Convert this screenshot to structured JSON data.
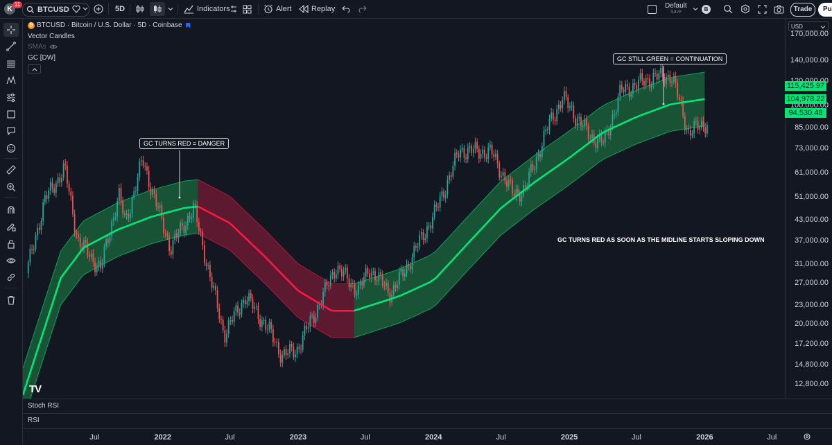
{
  "toolbar": {
    "avatar_letter": "K",
    "notification_count": "11",
    "symbol": "BTCUSD",
    "interval": "5D",
    "indicators_label": "Indicators",
    "alert_label": "Alert",
    "replay_label": "Replay",
    "layout_name": "Default",
    "layout_status": "Save",
    "trade_label": "Trade",
    "publish_label": "Pu"
  },
  "legend": {
    "title": "BTCUSD · Bitcoin / U.S. Dollar · 5D · Coinbase",
    "line2": "Vector Candles",
    "line3": "SMAs",
    "line4": "GC [DW]"
  },
  "currency": "USD",
  "annotations": {
    "danger": "GC TURNS RED = DANGER",
    "continuation": "GC STILL GREEN = CONTINUATION",
    "sloping": "GC TURNS RED AS SOON AS THE MIDLINE STARTS SLOPING DOWN"
  },
  "panes": {
    "stoch": "Stoch RSI",
    "rsi": "RSI"
  },
  "price_tags": [
    {
      "label": "115,425.97",
      "value": 115425.97
    },
    {
      "label": "104,978.22",
      "value": 104978.22
    },
    {
      "label": "94,530.48",
      "value": 94530.48
    }
  ],
  "colors": {
    "up": "#26a69a",
    "down": "#ef5350",
    "gc_green_fill": "#1b5e3a",
    "gc_red_fill": "#6b1a32",
    "gc_green_line": "#00e676",
    "gc_red_line": "#ff1744",
    "tag_green": "#00e676"
  },
  "chart_data": {
    "type": "candlestick",
    "y_scale": "log",
    "ylim": [
      11500,
      190000
    ],
    "y_ticks": [
      170000,
      140000,
      120000,
      100000,
      85000,
      73000,
      61000,
      51000,
      43000,
      37000,
      31000,
      27000,
      23000,
      20000,
      17200,
      14800,
      12800
    ],
    "y_tick_labels": [
      "170,000.00",
      "140,000.00",
      "120,000.00",
      "100,000.00",
      "85,000.00",
      "73,000.00",
      "61,000.00",
      "51,000.00",
      "43,000.00",
      "37,000.00",
      "31,000.00",
      "27,000.00",
      "23,000.00",
      "20,000.00",
      "17,200.00",
      "14,800.00",
      "12,800.00"
    ],
    "x_range": [
      "2020-12-20",
      "2026-08-05"
    ],
    "x_ticks": [
      {
        "date": "2021-07-01",
        "label": "Jul",
        "bold": false
      },
      {
        "date": "2022-01-01",
        "label": "2022",
        "bold": true
      },
      {
        "date": "2022-07-01",
        "label": "Jul",
        "bold": false
      },
      {
        "date": "2023-01-01",
        "label": "2023",
        "bold": true
      },
      {
        "date": "2023-07-01",
        "label": "Jul",
        "bold": false
      },
      {
        "date": "2024-01-01",
        "label": "2024",
        "bold": true
      },
      {
        "date": "2024-07-01",
        "label": "Jul",
        "bold": false
      },
      {
        "date": "2025-01-01",
        "label": "2025",
        "bold": true
      },
      {
        "date": "2025-07-01",
        "label": "Jul",
        "bold": false
      },
      {
        "date": "2026-01-01",
        "label": "2026",
        "bold": true
      },
      {
        "date": "2026-07-01",
        "label": "Jul",
        "bold": false
      }
    ],
    "price_path": [
      [
        "2021-01-01",
        29000
      ],
      [
        "2021-02-20",
        50000
      ],
      [
        "2021-04-14",
        63000
      ],
      [
        "2021-05-20",
        37000
      ],
      [
        "2021-07-20",
        30000
      ],
      [
        "2021-09-07",
        52000
      ],
      [
        "2021-09-25",
        42000
      ],
      [
        "2021-11-10",
        67000
      ],
      [
        "2022-01-24",
        35000
      ],
      [
        "2022-03-28",
        47000
      ],
      [
        "2022-05-12",
        28000
      ],
      [
        "2022-06-18",
        18500
      ],
      [
        "2022-08-15",
        24500
      ],
      [
        "2022-10-15",
        19200
      ],
      [
        "2022-11-21",
        15800
      ],
      [
        "2022-12-31",
        16500
      ],
      [
        "2023-03-15",
        25000
      ],
      [
        "2023-04-14",
        30500
      ],
      [
        "2023-06-15",
        25500
      ],
      [
        "2023-07-15",
        30000
      ],
      [
        "2023-09-11",
        25000
      ],
      [
        "2023-10-20",
        30000
      ],
      [
        "2024-01-10",
        46000
      ],
      [
        "2024-03-14",
        72000
      ],
      [
        "2024-06-07",
        71000
      ],
      [
        "2024-08-05",
        52000
      ],
      [
        "2024-09-06",
        54000
      ],
      [
        "2024-11-11",
        88000
      ],
      [
        "2024-12-17",
        106000
      ],
      [
        "2025-02-28",
        80000
      ],
      [
        "2025-04-07",
        76000
      ],
      [
        "2025-05-22",
        111000
      ],
      [
        "2025-08-14",
        123000
      ],
      [
        "2025-10-06",
        125000
      ],
      [
        "2025-11-21",
        82000
      ],
      [
        "2026-01-05",
        88000
      ]
    ],
    "gc_channel": [
      [
        "2020-12-20",
        11800
      ],
      [
        "2021-02-01",
        17000
      ],
      [
        "2021-04-01",
        28000
      ],
      [
        "2021-06-01",
        35000
      ],
      [
        "2021-09-01",
        40000
      ],
      [
        "2021-12-01",
        44000
      ],
      [
        "2022-03-01",
        47000
      ],
      [
        "2022-04-06",
        47500
      ],
      [
        "2022-07-01",
        42000
      ],
      [
        "2022-10-01",
        33000
      ],
      [
        "2023-01-01",
        25500
      ],
      [
        "2023-04-01",
        22000
      ],
      [
        "2023-06-01",
        22000
      ],
      [
        "2023-10-01",
        24500
      ],
      [
        "2024-01-01",
        27500
      ],
      [
        "2024-04-01",
        36000
      ],
      [
        "2024-07-01",
        47000
      ],
      [
        "2024-10-01",
        57000
      ],
      [
        "2025-01-01",
        68000
      ],
      [
        "2025-04-01",
        82000
      ],
      [
        "2025-07-01",
        92000
      ],
      [
        "2025-10-01",
        101000
      ],
      [
        "2026-01-01",
        105000
      ]
    ],
    "gc_band_ratio": 1.22,
    "gc_red_segment": [
      "2022-04-06",
      "2023-06-01"
    ]
  }
}
